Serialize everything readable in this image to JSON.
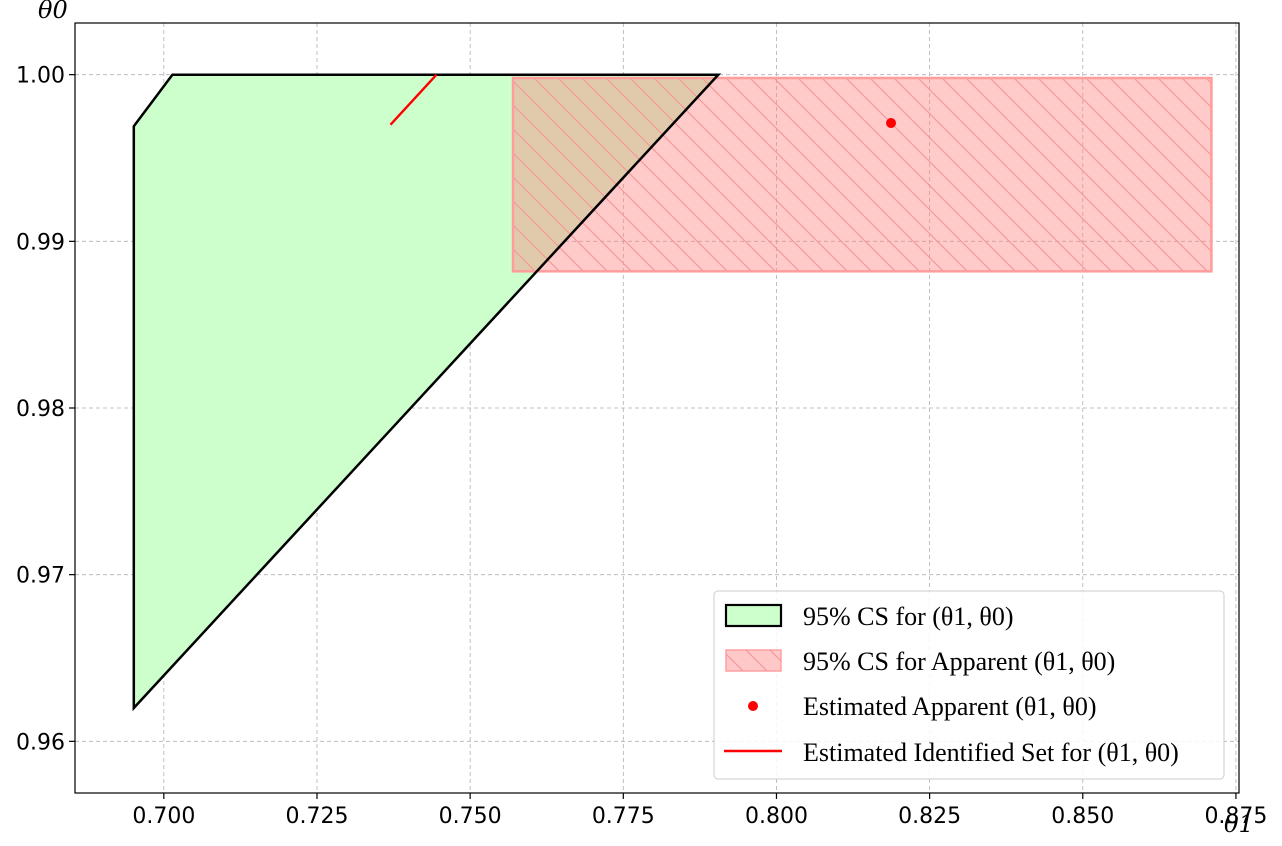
{
  "chart_data": {
    "type": "area",
    "title": "",
    "xlabel": "θ1",
    "ylabel": "θ0",
    "xlim": [
      0.6855,
      0.8755
    ],
    "ylim": [
      0.9569,
      1.0031
    ],
    "xticks": [
      0.7,
      0.725,
      0.75,
      0.775,
      0.8,
      0.825,
      0.85,
      0.875
    ],
    "xtick_labels": [
      "0.700",
      "0.725",
      "0.750",
      "0.775",
      "0.800",
      "0.825",
      "0.850",
      "0.875"
    ],
    "yticks": [
      0.96,
      0.97,
      0.98,
      0.99,
      1.0
    ],
    "ytick_labels": [
      "0.96",
      "0.97",
      "0.98",
      "0.99",
      "1.00"
    ],
    "grid": true,
    "legend_position": "bottom-right",
    "series": [
      {
        "name": "95% CS for (θ1, θ0)",
        "kind": "polygon",
        "fill": "#ccffcc",
        "edge": "#000000",
        "points": [
          [
            0.6951,
            0.9969
          ],
          [
            0.7014,
            1.0
          ],
          [
            0.7905,
            1.0
          ],
          [
            0.6951,
            0.962
          ]
        ]
      },
      {
        "name": "95% CS for Apparent (θ1, θ0)",
        "kind": "rectangle",
        "fill": "#ffc8c8",
        "edge": "#ff9c9c",
        "hatch": "\\\\",
        "points": [
          [
            0.757,
            0.9882
          ],
          [
            0.871,
            0.9882
          ],
          [
            0.871,
            0.9998
          ],
          [
            0.757,
            0.9998
          ]
        ]
      },
      {
        "name": "Estimated Apparent (θ1, θ0)",
        "kind": "point",
        "color": "#ff0000",
        "points": [
          [
            0.8187,
            0.9971
          ]
        ]
      },
      {
        "name": "Estimated Identified Set for (θ1, θ0)",
        "kind": "line",
        "color": "#ff0000",
        "points": [
          [
            0.737,
            0.997
          ],
          [
            0.7445,
            1.0
          ]
        ]
      }
    ]
  }
}
